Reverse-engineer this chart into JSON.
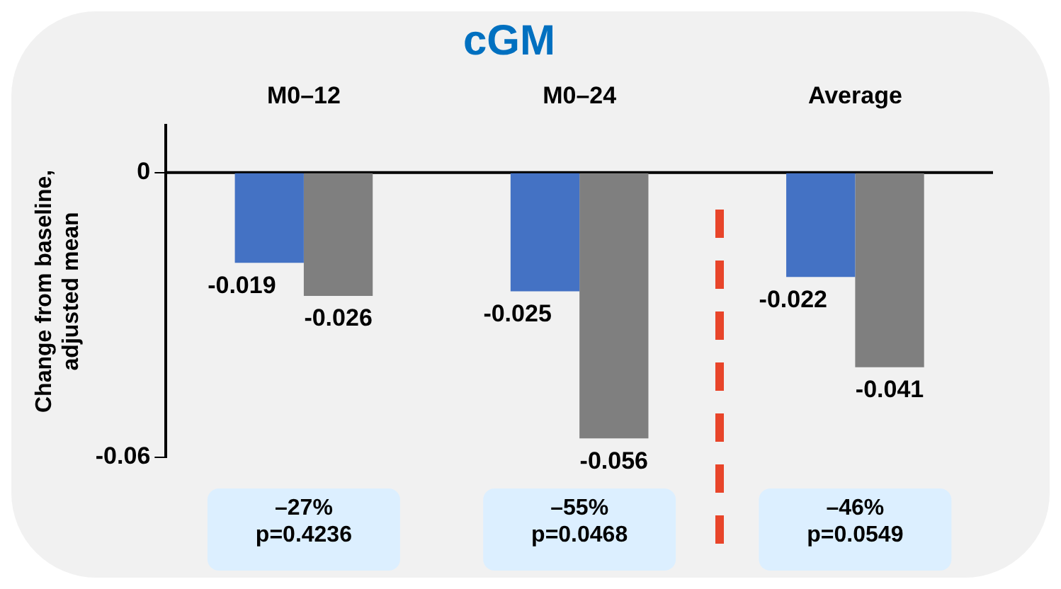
{
  "chart_data": {
    "type": "bar",
    "title": "cGM",
    "ylabel": "Change from baseline,\nadjusted mean",
    "categories": [
      "M0–12",
      "M0–24",
      "Average"
    ],
    "series": [
      {
        "color": "#4472c4",
        "values": [
          -0.019,
          -0.025,
          -0.022
        ]
      },
      {
        "color": "#7f7f7f",
        "values": [
          -0.026,
          -0.056,
          -0.041
        ]
      }
    ],
    "ylim": [
      -0.06,
      0.01
    ],
    "yticks": [
      -0.06,
      0
    ],
    "legend": false,
    "data_labels": true,
    "annotations": [
      "–27%\np=0.4236",
      "–55%\np=0.0468",
      "–46%\np=0.0549"
    ]
  }
}
